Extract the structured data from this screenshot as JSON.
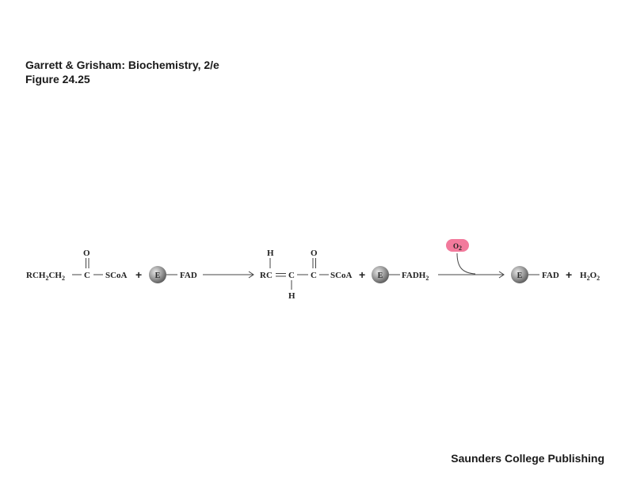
{
  "header": {
    "line1": "Garrett & Grisham: Biochemistry, 2/e",
    "line2": "Figure 24.25"
  },
  "publisher": "Saunders College Publishing",
  "scheme": {
    "substrate": {
      "main": "RCH",
      "sub1": "2",
      "mid": "CH",
      "sub2": "2",
      "carbonyl_c": "C",
      "carbonyl_o": "O",
      "coa": "SCoA"
    },
    "plus": "+",
    "enzyme_label": "E",
    "cofactor_ox": "FAD",
    "product": {
      "rc": "RC",
      "c2": "C",
      "h_top": "H",
      "h_bottom": "H",
      "carbonyl_c": "C",
      "carbonyl_o": "O",
      "coa": "SCoA"
    },
    "cofactor_red": {
      "main": "FADH",
      "sub": "2"
    },
    "oxygen": {
      "main": "O",
      "sub": "2"
    },
    "final": {
      "cofactor": "FAD",
      "peroxide": {
        "h": "H",
        "sub1": "2",
        "o": "O",
        "sub2": "2"
      }
    }
  },
  "colors": {
    "enzyme_fill": "#8c8c8c",
    "oxygen_fill": "#f27a9c",
    "text": "#222222"
  }
}
